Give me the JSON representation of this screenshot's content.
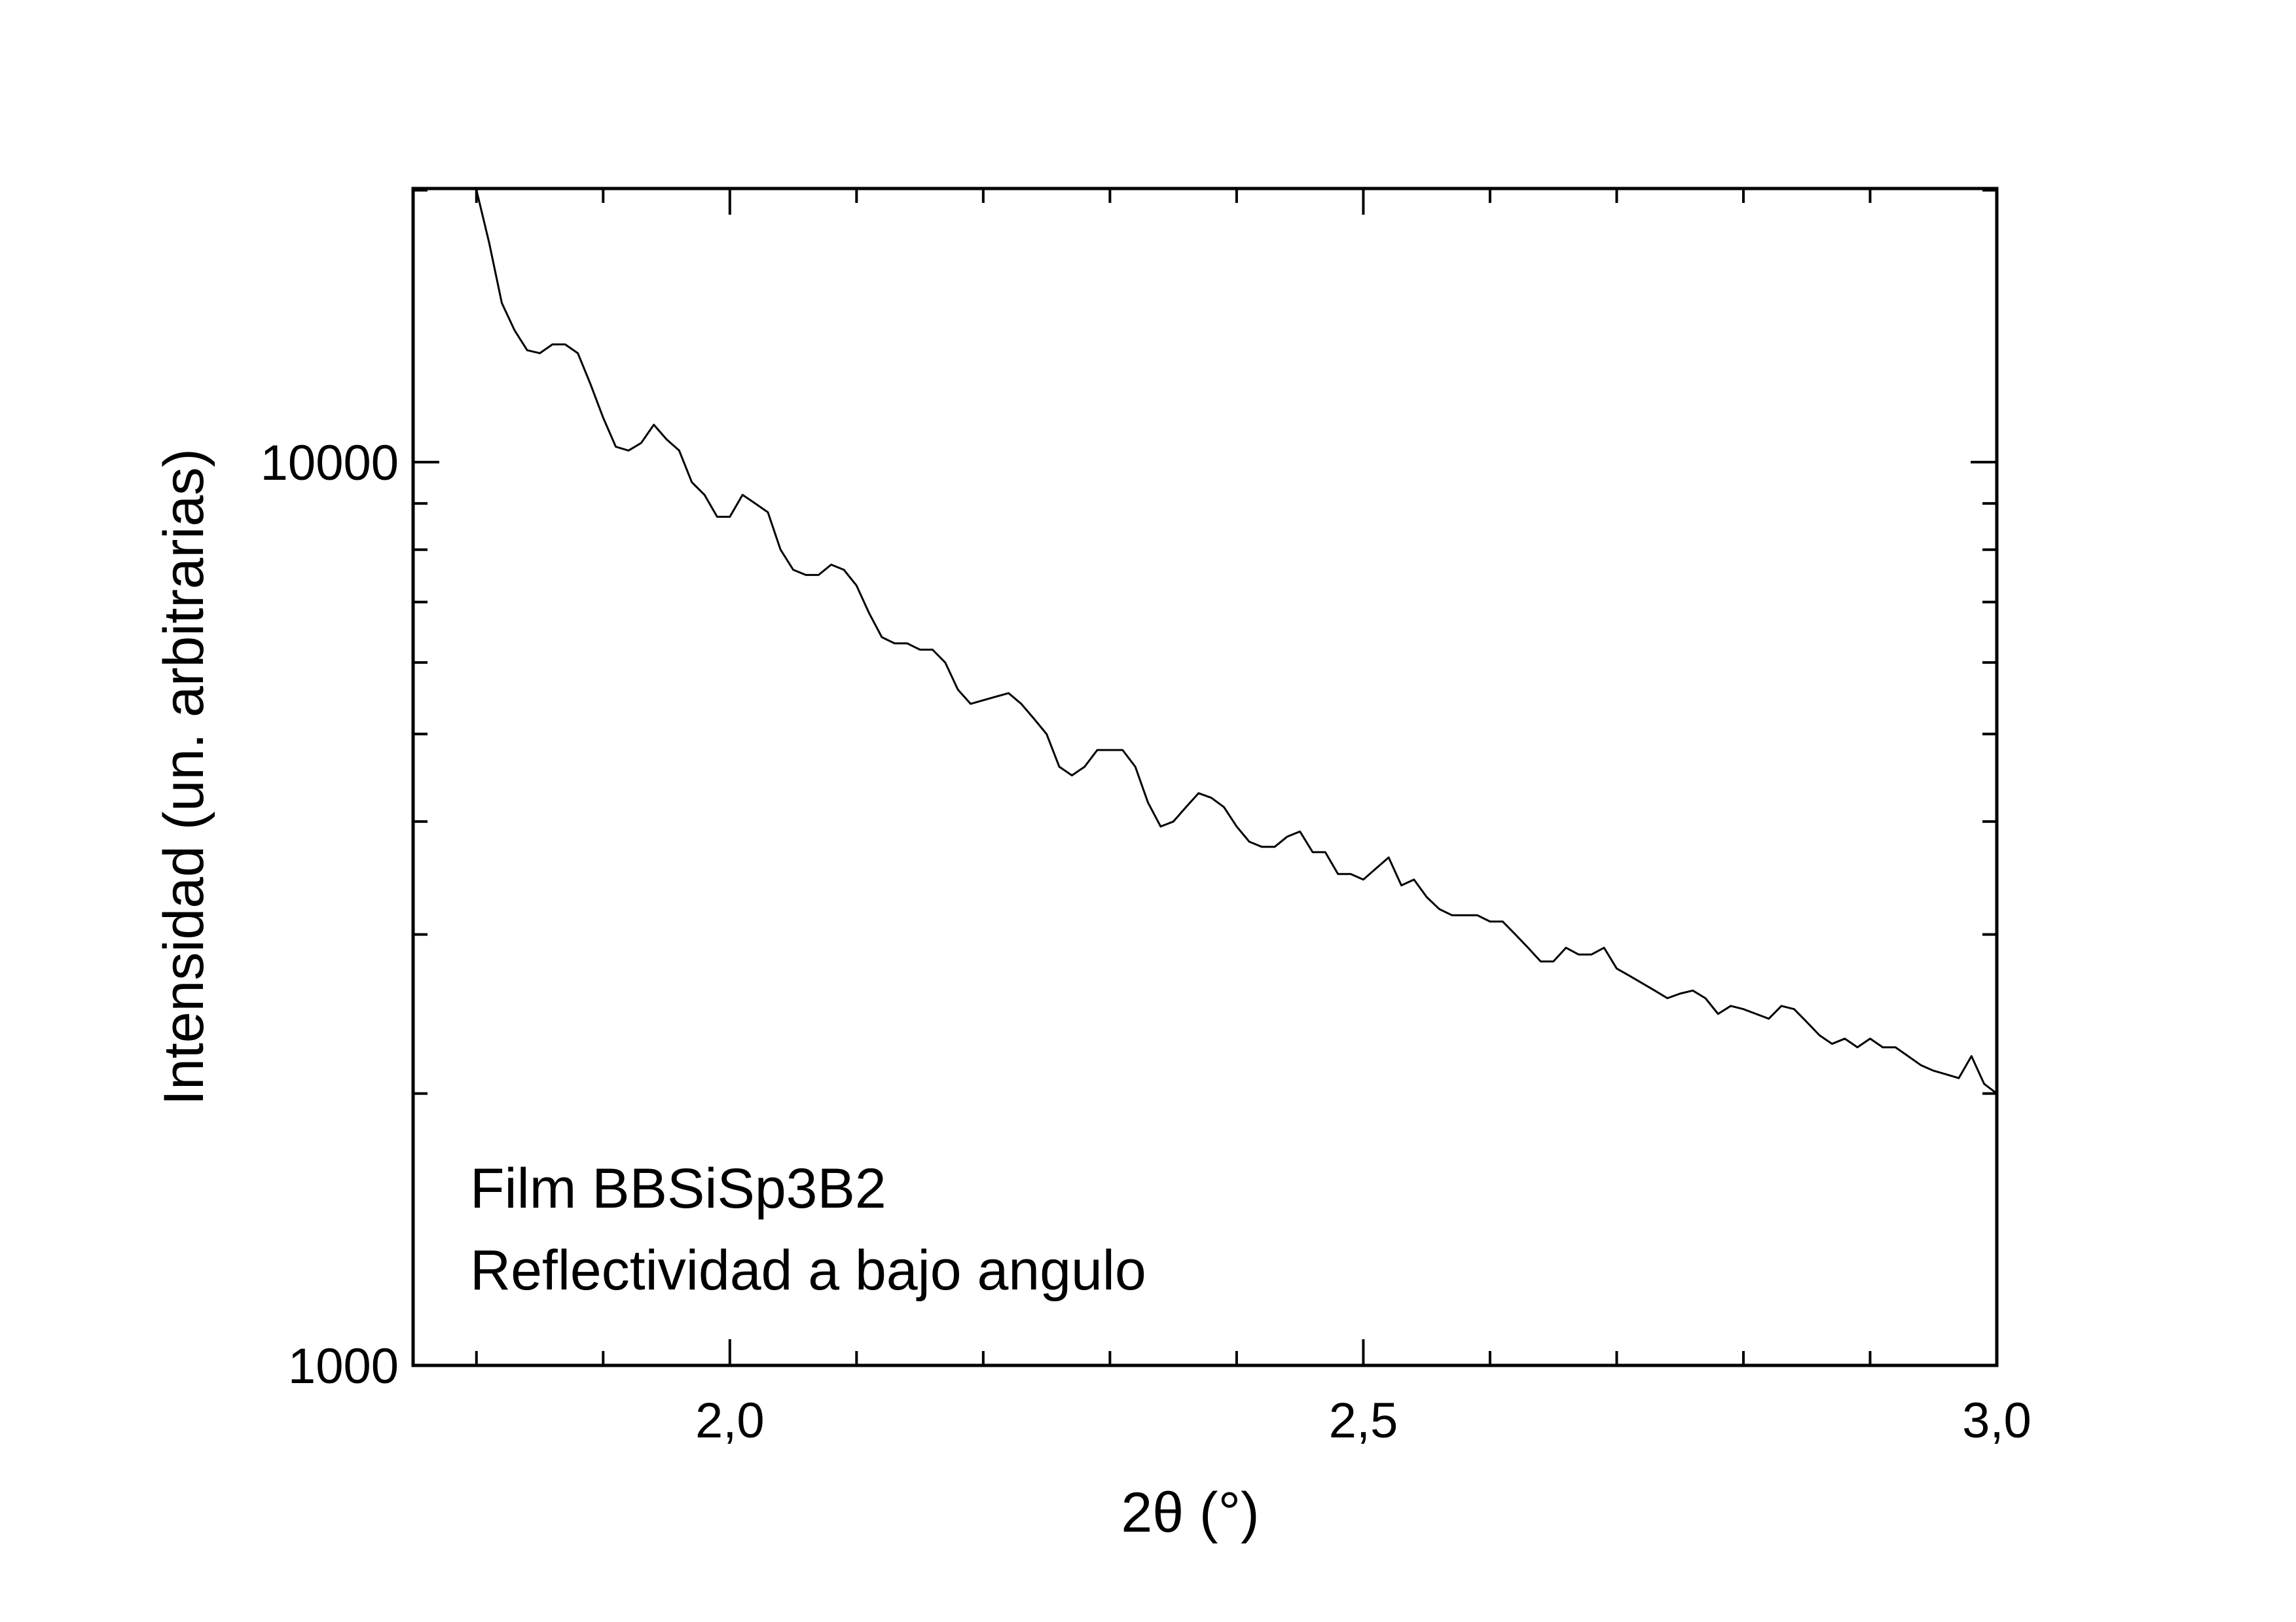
{
  "chart_data": {
    "type": "line",
    "title": "",
    "xlabel": "2θ (°)",
    "ylabel": "Intensidad (un. arbitrarias)",
    "xlim": [
      1.75,
      3.0
    ],
    "ylim": [
      1000,
      20000
    ],
    "yscale": "log",
    "grid": false,
    "legend": "none",
    "line_color": "#000000",
    "x_ticks": [
      {
        "value": 2.0,
        "label": "2,0"
      },
      {
        "value": 2.5,
        "label": "2,5"
      },
      {
        "value": 3.0,
        "label": "3,0"
      }
    ],
    "x_minor_ticks": [
      1.8,
      1.9,
      2.1,
      2.2,
      2.3,
      2.4,
      2.6,
      2.7,
      2.8,
      2.9
    ],
    "y_ticks": [
      {
        "value": 1000,
        "label": "1000"
      },
      {
        "value": 10000,
        "label": "10000"
      }
    ],
    "y_minor_ticks": [
      2000,
      3000,
      4000,
      5000,
      6000,
      7000,
      8000,
      9000,
      20000
    ],
    "annotations": [
      "Film BBSiSp3B2",
      "Reflectividad a bajo angulo"
    ],
    "series": [
      {
        "x": [
          1.8,
          1.81,
          1.82,
          1.83,
          1.84,
          1.85,
          1.86,
          1.87,
          1.88,
          1.89,
          1.9,
          1.91,
          1.92,
          1.93,
          1.94,
          1.95,
          1.96,
          1.97,
          1.98,
          1.99,
          2.0,
          2.01,
          2.02,
          2.03,
          2.04,
          2.05,
          2.06,
          2.07,
          2.08,
          2.09,
          2.1,
          2.11,
          2.12,
          2.13,
          2.14,
          2.15,
          2.16,
          2.17,
          2.18,
          2.19,
          2.2,
          2.21,
          2.22,
          2.23,
          2.24,
          2.25,
          2.26,
          2.27,
          2.28,
          2.29,
          2.3,
          2.31,
          2.32,
          2.33,
          2.34,
          2.35,
          2.36,
          2.37,
          2.38,
          2.39,
          2.4,
          2.41,
          2.42,
          2.43,
          2.44,
          2.45,
          2.46,
          2.47,
          2.48,
          2.49,
          2.5,
          2.51,
          2.52,
          2.53,
          2.54,
          2.55,
          2.56,
          2.57,
          2.58,
          2.59,
          2.6,
          2.61,
          2.62,
          2.63,
          2.64,
          2.65,
          2.66,
          2.67,
          2.68,
          2.69,
          2.7,
          2.71,
          2.72,
          2.73,
          2.74,
          2.75,
          2.76,
          2.77,
          2.78,
          2.79,
          2.8,
          2.81,
          2.82,
          2.83,
          2.84,
          2.85,
          2.86,
          2.87,
          2.88,
          2.89,
          2.9,
          2.91,
          2.92,
          2.93,
          2.94,
          2.95,
          2.96,
          2.97,
          2.98,
          2.99,
          3.0
        ],
        "y": [
          20000,
          17500,
          15000,
          14000,
          13300,
          13200,
          13500,
          13500,
          13200,
          12200,
          11200,
          10400,
          10300,
          10500,
          11000,
          10600,
          10300,
          9500,
          9200,
          8700,
          8700,
          9200,
          9000,
          8800,
          8000,
          7600,
          7500,
          7500,
          7700,
          7600,
          7300,
          6800,
          6400,
          6300,
          6300,
          6200,
          6200,
          6000,
          5600,
          5400,
          5450,
          5500,
          5550,
          5400,
          5200,
          5000,
          4600,
          4500,
          4600,
          4800,
          4800,
          4800,
          4600,
          4200,
          3950,
          4000,
          4150,
          4300,
          4250,
          4150,
          3950,
          3800,
          3750,
          3750,
          3850,
          3900,
          3700,
          3700,
          3500,
          3500,
          3450,
          3550,
          3650,
          3400,
          3450,
          3300,
          3200,
          3150,
          3150,
          3150,
          3100,
          3100,
          3000,
          2900,
          2800,
          2800,
          2900,
          2850,
          2850,
          2900,
          2750,
          2700,
          2650,
          2600,
          2550,
          2580,
          2600,
          2550,
          2450,
          2500,
          2480,
          2450,
          2420,
          2500,
          2480,
          2400,
          2320,
          2270,
          2300,
          2250,
          2300,
          2250,
          2250,
          2200,
          2150,
          2120,
          2100,
          2080,
          2200,
          2050,
          2000
        ]
      }
    ]
  }
}
